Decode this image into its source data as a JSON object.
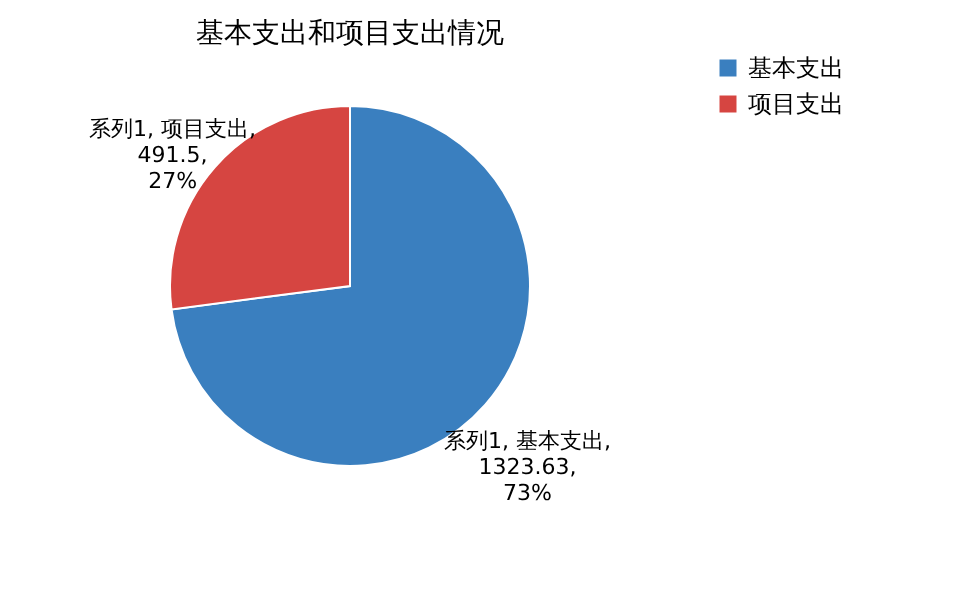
{
  "chart_data": {
    "type": "pie",
    "title": "基本支出和项目支出情况",
    "categories": [
      "基本支出",
      "项目支出"
    ],
    "values": [
      1323.63,
      491.5
    ],
    "colors": [
      "#3a7fbf",
      "#d64541"
    ],
    "value_labels": [
      "系列1, 基本支出, 1323.63, 73%",
      "系列1, 项目支出, 491.5, 27%"
    ],
    "legend": "right"
  }
}
